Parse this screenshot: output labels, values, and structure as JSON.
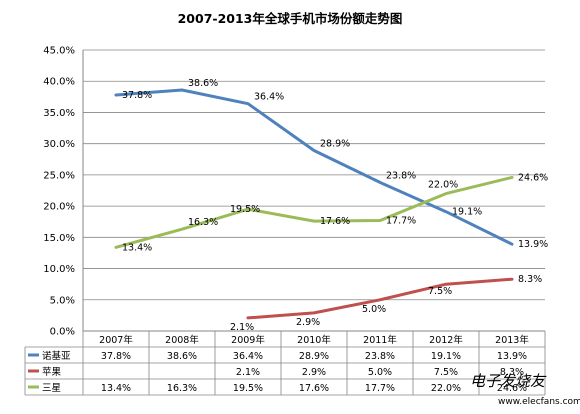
{
  "chart_data": {
    "type": "line",
    "title": "2007-2013年全球手机市场份额走势图",
    "categories": [
      "2007年",
      "2008年",
      "2009年",
      "2010年",
      "2011年",
      "2012年",
      "2013年"
    ],
    "ylim": [
      0,
      45
    ],
    "ytick_step": 5,
    "ytick_labels": [
      "0.0%",
      "5.0%",
      "10.0%",
      "15.0%",
      "20.0%",
      "25.0%",
      "30.0%",
      "35.0%",
      "40.0%",
      "45.0%"
    ],
    "grid": true,
    "legend_placement": "data-table-bottom",
    "series": [
      {
        "name": "诺基亚",
        "color": "#4f81bd",
        "values": [
          37.8,
          38.6,
          36.4,
          28.9,
          23.8,
          19.1,
          13.9
        ],
        "labels": [
          "37.8%",
          "38.6%",
          "36.4%",
          "28.9%",
          "23.8%",
          "19.1%",
          "13.9%"
        ]
      },
      {
        "name": "苹果",
        "color": "#c0504d",
        "values": [
          null,
          null,
          2.1,
          2.9,
          5.0,
          7.5,
          8.3
        ],
        "labels": [
          "",
          "",
          "2.1%",
          "2.9%",
          "5.0%",
          "7.5%",
          "8.3%"
        ]
      },
      {
        "name": "三星",
        "color": "#9bbb59",
        "values": [
          13.4,
          16.3,
          19.5,
          17.6,
          17.7,
          22.0,
          24.6
        ],
        "labels": [
          "13.4%",
          "16.3%",
          "19.5%",
          "17.6%",
          "17.7%",
          "22.0%",
          "24.6%"
        ]
      }
    ]
  },
  "watermark": {
    "text": "电子发烧友",
    "url": "www.elecfans.com"
  }
}
